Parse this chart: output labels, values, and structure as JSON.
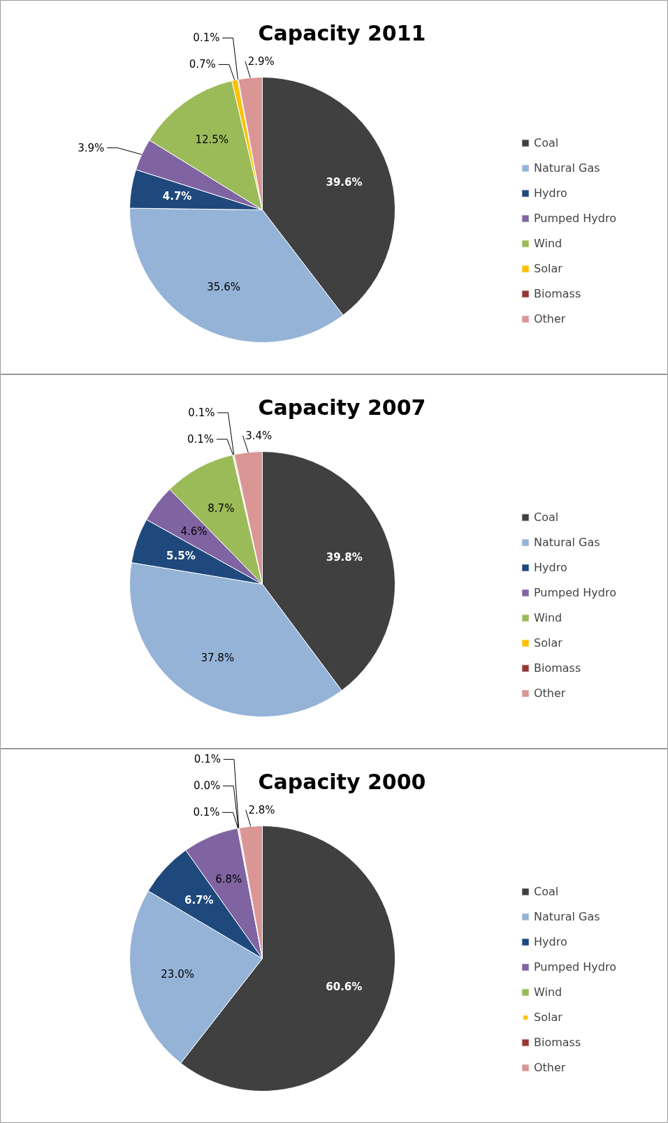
{
  "chart_data": [
    {
      "type": "pie",
      "title": "Capacity 2011",
      "categories": [
        "Coal",
        "Natural Gas",
        "Hydro",
        "Pumped Hydro",
        "Wind",
        "Solar",
        "Biomass",
        "Other"
      ],
      "values": [
        39.6,
        35.6,
        4.7,
        3.9,
        12.5,
        0.7,
        0.1,
        2.9
      ],
      "value_labels": [
        "39.6%",
        "35.6%",
        "4.7%",
        "3.9%",
        "12.5%",
        "0.7%",
        "0.1%",
        "2.9%"
      ],
      "colors": [
        "#404040",
        "#95b3d7",
        "#1f497d",
        "#8064a2",
        "#9bbb59",
        "#ffc000",
        "#953735",
        "#d99694"
      ],
      "data_labels": true,
      "legend": "right"
    },
    {
      "type": "pie",
      "title": "Capacity 2007",
      "categories": [
        "Coal",
        "Natural Gas",
        "Hydro",
        "Pumped Hydro",
        "Wind",
        "Solar",
        "Biomass",
        "Other"
      ],
      "values": [
        39.8,
        37.8,
        5.5,
        4.6,
        8.7,
        0.1,
        0.1,
        3.4
      ],
      "value_labels": [
        "39.8%",
        "37.8%",
        "5.5%",
        "4.6%",
        "8.7%",
        "0.1%",
        "0.1%",
        "3.4%"
      ],
      "colors": [
        "#404040",
        "#95b3d7",
        "#1f497d",
        "#8064a2",
        "#9bbb59",
        "#ffc000",
        "#953735",
        "#d99694"
      ],
      "data_labels": true,
      "legend": "right"
    },
    {
      "type": "pie",
      "title": "Capacity 2000",
      "categories": [
        "Coal",
        "Natural Gas",
        "Hydro",
        "Pumped Hydro",
        "Wind",
        "Solar",
        "Biomass",
        "Other"
      ],
      "values": [
        60.6,
        23.0,
        6.7,
        6.8,
        0.1,
        0.0,
        0.1,
        2.8
      ],
      "value_labels": [
        "60.6%",
        "23.0%",
        "6.7%",
        "6.8%",
        "0.1%",
        "0.0%",
        "0.1%",
        "2.8%"
      ],
      "colors": [
        "#404040",
        "#95b3d7",
        "#1f497d",
        "#8064a2",
        "#9bbb59",
        "#ffc000",
        "#953735",
        "#d99694"
      ],
      "data_labels": true,
      "legend": "right"
    }
  ]
}
